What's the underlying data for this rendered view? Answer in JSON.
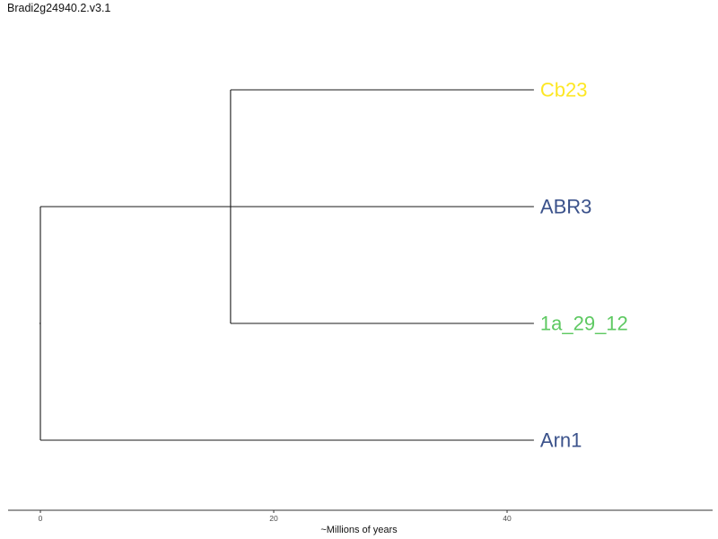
{
  "title": "Bradi2g24940.2.v3.1",
  "tree": {
    "leaves": [
      {
        "id": "cb23",
        "label": "Cb23",
        "color": "#fde725"
      },
      {
        "id": "abr3",
        "label": "ABR3",
        "color": "#3b528b"
      },
      {
        "id": "1a_29_12",
        "label": "1a_29_12",
        "color": "#5ec962"
      },
      {
        "id": "arn1",
        "label": "Arn1",
        "color": "#3b528b"
      }
    ],
    "node_depths_million_years": {
      "root": 0,
      "inner_clade": 16.3,
      "tips": 42.3
    }
  },
  "axis": {
    "title": "~Millions of years",
    "ticks": [
      {
        "value": 0,
        "label": "0"
      },
      {
        "value": 20,
        "label": "20"
      },
      {
        "value": 40,
        "label": "40"
      }
    ],
    "range": [
      0,
      57
    ]
  }
}
